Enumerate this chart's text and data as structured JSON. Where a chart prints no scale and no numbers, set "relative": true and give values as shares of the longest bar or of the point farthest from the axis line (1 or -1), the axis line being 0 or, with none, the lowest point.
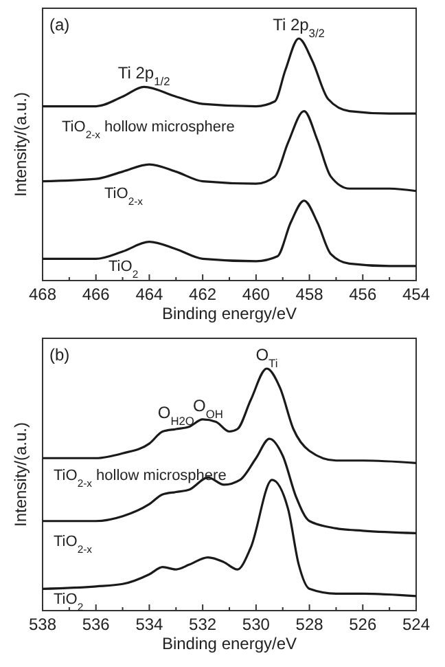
{
  "chart_data": [
    {
      "type": "line",
      "relative": true,
      "xlabel": "Binding energy/eV",
      "ylabel": "Intensity/(a.u.)",
      "xlim": [
        468,
        454
      ],
      "xticks": [
        468,
        {
          "value": 467,
          "label": null
        },
        466,
        {
          "value": 465,
          "label": null
        },
        464,
        {
          "value": 463,
          "label": null
        },
        462,
        {
          "value": 461,
          "label": null
        },
        460,
        {
          "value": 459,
          "label": null
        },
        458,
        {
          "value": 457,
          "label": null
        },
        456,
        {
          "value": 455,
          "label": null
        },
        454
      ],
      "annotations": [
        "(a)",
        {
          "text": "Ti 2p$_{1/2}$",
          "x": 464.2,
          "y": 0.8
        },
        {
          "text": "Ti 2p$_{3/2}$",
          "x": 458.4,
          "y": 1.0
        }
      ],
      "series": [
        {
          "name": "TiO$_{2-x}$ hollow microsphere",
          "color": "#1a1a1a",
          "x": [
            468,
            466,
            465,
            464.2,
            463,
            462,
            460,
            459.3,
            458.9,
            458.4,
            457.9,
            457.3,
            456.5,
            455,
            454
          ],
          "values": [
            0.72,
            0.72,
            0.76,
            0.8,
            0.76,
            0.73,
            0.72,
            0.74,
            0.87,
            1.0,
            0.91,
            0.75,
            0.7,
            0.69,
            0.69
          ]
        },
        {
          "name": "TiO$_{2-x}$",
          "color": "#1a1a1a",
          "x": [
            468,
            466,
            465,
            464,
            463,
            462,
            460,
            459.3,
            458.8,
            458.2,
            457.7,
            457.2,
            456.5,
            455,
            454
          ],
          "values": [
            0.41,
            0.42,
            0.45,
            0.48,
            0.45,
            0.41,
            0.4,
            0.43,
            0.57,
            0.7,
            0.58,
            0.43,
            0.38,
            0.38,
            0.37
          ]
        },
        {
          "name": "TiO$_{2}$",
          "color": "#1a1a1a",
          "x": [
            468,
            466,
            465,
            464,
            463,
            462,
            460,
            459.2,
            458.7,
            458.2,
            457.7,
            457.2,
            456.5,
            455,
            454
          ],
          "values": [
            0.09,
            0.09,
            0.12,
            0.16,
            0.13,
            0.09,
            0.08,
            0.1,
            0.24,
            0.33,
            0.24,
            0.11,
            0.07,
            0.06,
            0.06
          ]
        }
      ]
    },
    {
      "type": "line",
      "relative": true,
      "xlabel": "Binding energy/eV",
      "ylabel": "Intensity/(a.u.)",
      "xlim": [
        538,
        524
      ],
      "xticks": [
        538,
        {
          "value": 537,
          "label": null
        },
        536,
        {
          "value": 535,
          "label": null
        },
        534,
        {
          "value": 533,
          "label": null
        },
        532,
        {
          "value": 531,
          "label": null
        },
        530,
        {
          "value": 529,
          "label": null
        },
        528,
        {
          "value": 527,
          "label": null
        },
        526,
        {
          "value": 525,
          "label": null
        },
        524
      ],
      "annotations": [
        "(b)",
        {
          "text": "O$_{H2O}$",
          "x": 533,
          "y": 0.76
        },
        {
          "text": "O$_{OH}$",
          "x": 531.8,
          "y": 0.79
        },
        {
          "text": "O$_{Ti}$",
          "x": 529.6,
          "y": 1.0
        }
      ],
      "series": [
        {
          "name": "TiO$_{2-x}$ hollow microsphere",
          "color": "#1a1a1a",
          "x": [
            538,
            536,
            535,
            534,
            533.5,
            533,
            532.5,
            532,
            531.5,
            531,
            530.7,
            530.2,
            529.6,
            529.1,
            528.6,
            528,
            527,
            526,
            524
          ],
          "values": [
            0.63,
            0.63,
            0.65,
            0.69,
            0.74,
            0.75,
            0.76,
            0.79,
            0.78,
            0.74,
            0.75,
            0.87,
            1.0,
            0.92,
            0.75,
            0.66,
            0.62,
            0.62,
            0.61
          ]
        },
        {
          "name": "TiO$_{2-x}$",
          "color": "#1a1a1a",
          "x": [
            538,
            536,
            535,
            534,
            533.5,
            533,
            532.5,
            531.8,
            531.2,
            530.6,
            530,
            529.5,
            529,
            528.5,
            528,
            527,
            526,
            524
          ],
          "values": [
            0.37,
            0.37,
            0.39,
            0.44,
            0.48,
            0.49,
            0.5,
            0.55,
            0.52,
            0.54,
            0.63,
            0.71,
            0.64,
            0.47,
            0.37,
            0.34,
            0.33,
            0.32
          ]
        },
        {
          "name": "TiO$_{2}$",
          "color": "#1a1a1a",
          "x": [
            538,
            536,
            535,
            534,
            533.5,
            533,
            532.5,
            531.8,
            531.2,
            530.7,
            530.2,
            529.4,
            528.8,
            528.4,
            528,
            527,
            526,
            524
          ],
          "values": [
            0.09,
            0.1,
            0.11,
            0.15,
            0.18,
            0.17,
            0.19,
            0.22,
            0.2,
            0.17,
            0.26,
            0.54,
            0.42,
            0.19,
            0.09,
            0.07,
            0.07,
            0.06
          ]
        }
      ]
    }
  ]
}
